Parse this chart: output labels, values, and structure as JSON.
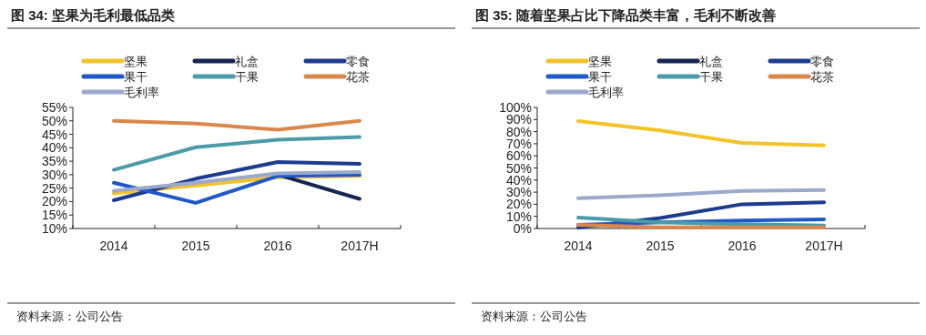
{
  "chart_data": [
    {
      "type": "line",
      "title": "图 34:  坚果为毛利最低品类",
      "categories": [
        "2014",
        "2015",
        "2016",
        "2017H"
      ],
      "series": [
        {
          "name": "坚果",
          "color": "#f2c42a",
          "values": [
            23,
            26,
            29,
            29.5
          ]
        },
        {
          "name": "礼盒",
          "color": "#152550",
          "values": [
            null,
            null,
            30,
            21
          ]
        },
        {
          "name": "零食",
          "color": "#1c3c8e",
          "values": [
            20.5,
            28.5,
            34.7,
            34
          ]
        },
        {
          "name": "果干",
          "color": "#1f58c8",
          "values": [
            27,
            19.5,
            29.5,
            30
          ]
        },
        {
          "name": "干果",
          "color": "#4b9ba8",
          "values": [
            31.8,
            40.2,
            43,
            44
          ]
        },
        {
          "name": "花茶",
          "color": "#d9874a",
          "values": [
            50,
            49,
            46.7,
            50
          ]
        },
        {
          "name": "毛利率",
          "color": "#9aa9cc",
          "values": [
            24,
            27,
            30.5,
            31
          ]
        }
      ],
      "ylim": [
        10,
        55
      ],
      "yticks": [
        {
          "value": 10,
          "label": "10%"
        },
        {
          "value": 15,
          "label": "15%"
        },
        {
          "value": 20,
          "label": "20%"
        },
        {
          "value": 25,
          "label": "25%"
        },
        {
          "value": 30,
          "label": "30%"
        },
        {
          "value": 35,
          "label": "35%"
        },
        {
          "value": 40,
          "label": "40%"
        },
        {
          "value": 45,
          "label": "45%"
        },
        {
          "value": 50,
          "label": "50%"
        },
        {
          "value": 55,
          "label": "55%"
        }
      ],
      "legend": "top",
      "annotations": [
        "资料来源：公司公告"
      ]
    },
    {
      "type": "line",
      "title": "图 35:  随着坚果占比下降品类丰富，毛利不断改善",
      "categories": [
        "2014",
        "2015",
        "2016",
        "2017H"
      ],
      "series": [
        {
          "name": "坚果",
          "color": "#f2c42a",
          "values": [
            88.7,
            81,
            70.7,
            68.7
          ]
        },
        {
          "name": "礼盒",
          "color": "#152550",
          "values": [
            null,
            null,
            null,
            null
          ]
        },
        {
          "name": "零食",
          "color": "#1c3c8e",
          "values": [
            0.7,
            8.7,
            20,
            21.7
          ]
        },
        {
          "name": "果干",
          "color": "#1f58c8",
          "values": [
            3,
            5,
            6.5,
            7.5
          ]
        },
        {
          "name": "干果",
          "color": "#4b9ba8",
          "values": [
            9,
            5,
            3.5,
            2.5
          ]
        },
        {
          "name": "花茶",
          "color": "#d9874a",
          "values": [
            3,
            1,
            1,
            1
          ]
        },
        {
          "name": "毛利率",
          "color": "#9aa9cc",
          "values": [
            25,
            27.5,
            31,
            31.7
          ]
        }
      ],
      "ylim": [
        0,
        100
      ],
      "yticks": [
        {
          "value": 0,
          "label": "0%"
        },
        {
          "value": 10,
          "label": "10%"
        },
        {
          "value": 20,
          "label": "20%"
        },
        {
          "value": 30,
          "label": "30%"
        },
        {
          "value": 40,
          "label": "40%"
        },
        {
          "value": 50,
          "label": "50%"
        },
        {
          "value": 60,
          "label": "60%"
        },
        {
          "value": 70,
          "label": "70%"
        },
        {
          "value": 80,
          "label": "80%"
        },
        {
          "value": 90,
          "label": "90%"
        },
        {
          "value": 100,
          "label": "100%"
        }
      ],
      "legend": "top",
      "annotations": [
        "资料来源：公司公告"
      ]
    }
  ]
}
